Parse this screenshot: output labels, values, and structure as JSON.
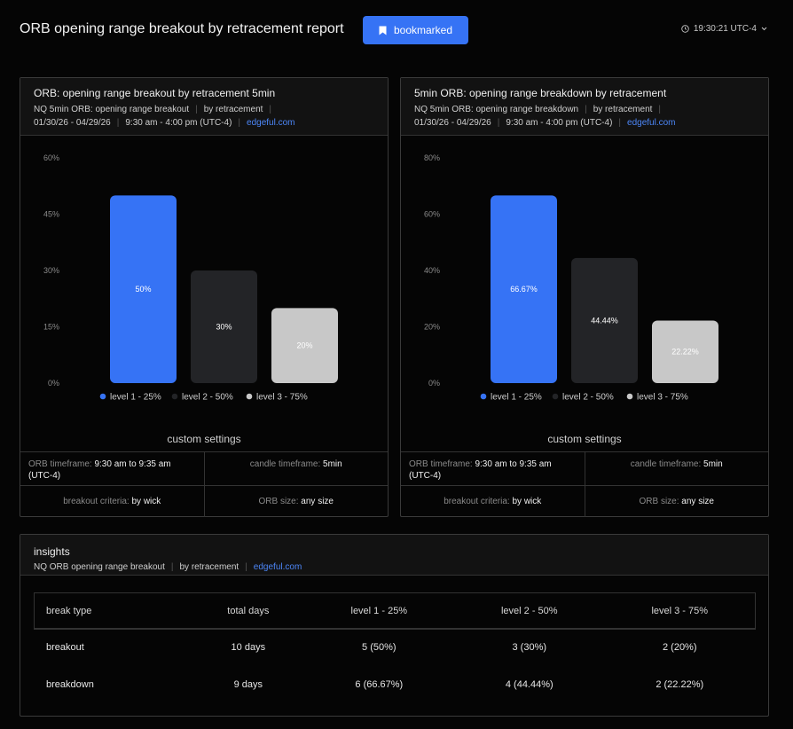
{
  "header": {
    "title": "ORB opening range breakout by retracement report",
    "bookmark_label": "bookmarked",
    "time_label": "19:30:21 UTC-4"
  },
  "panels": [
    {
      "title": "ORB: opening range breakout by retracement 5min",
      "subtitle_a": "NQ 5min ORB: opening range breakout",
      "subtitle_b": "by retracement",
      "date_range": "01/30/26 - 04/29/26",
      "time_range": "9:30 am - 4:00 pm (UTC-4)",
      "link": "edgeful.com",
      "custom_settings_title": "custom settings",
      "settings": {
        "orb_timeframe_label": "ORB timeframe:",
        "orb_timeframe_value": "9:30 am to 9:35 am (UTC-4)",
        "candle_timeframe_label": "candle timeframe:",
        "candle_timeframe_value": "5min",
        "criteria_label": "breakout criteria:",
        "criteria_value": "by wick",
        "orb_size_label": "ORB size:",
        "orb_size_value": "any size"
      }
    },
    {
      "title": "5min ORB: opening range breakdown by retracement",
      "subtitle_a": "NQ 5min ORB: opening range breakdown",
      "subtitle_b": "by retracement",
      "date_range": "01/30/26 - 04/29/26",
      "time_range": "9:30 am - 4:00 pm (UTC-4)",
      "link": "edgeful.com",
      "custom_settings_title": "custom settings",
      "settings": {
        "orb_timeframe_label": "ORB timeframe:",
        "orb_timeframe_value": "9:30 am to 9:35 am (UTC-4)",
        "candle_timeframe_label": "candle timeframe:",
        "candle_timeframe_value": "5min",
        "criteria_label": "breakout criteria:",
        "criteria_value": "by wick",
        "orb_size_label": "ORB size:",
        "orb_size_value": "any size"
      }
    }
  ],
  "chart_data": [
    {
      "type": "bar",
      "categories": [
        "level 1 - 25%",
        "level 2 - 50%",
        "level 3 - 75%"
      ],
      "values": [
        50,
        30,
        20
      ],
      "data_labels": [
        "50%",
        "30%",
        "20%"
      ],
      "ylim": [
        0,
        60
      ],
      "yticks": [
        "0%",
        "15%",
        "30%",
        "45%",
        "60%"
      ],
      "colors": [
        "#3673f5",
        "#232427",
        "#c8c8c8"
      ],
      "label_colors": [
        "#ffffff",
        "#ffffff",
        "#ffffff"
      ],
      "legend_position": "bottom",
      "grid": false
    },
    {
      "type": "bar",
      "categories": [
        "level 1 - 25%",
        "level 2 - 50%",
        "level 3 - 75%"
      ],
      "values": [
        66.67,
        44.44,
        22.22
      ],
      "data_labels": [
        "66.67%",
        "44.44%",
        "22.22%"
      ],
      "ylim": [
        0,
        80
      ],
      "yticks": [
        "0%",
        "20%",
        "40%",
        "60%",
        "80%"
      ],
      "colors": [
        "#3673f5",
        "#232427",
        "#c8c8c8"
      ],
      "label_colors": [
        "#ffffff",
        "#ffffff",
        "#ffffff"
      ],
      "legend_position": "bottom",
      "grid": false
    }
  ],
  "insights": {
    "title": "insights",
    "subtitle_a": "NQ ORB opening range breakout",
    "subtitle_b": "by retracement",
    "link": "edgeful.com",
    "columns": [
      "break type",
      "total days",
      "level 1 - 25%",
      "level 2 - 50%",
      "level 3 - 75%"
    ],
    "rows": [
      [
        "breakout",
        "10 days",
        "5 (50%)",
        "3 (30%)",
        "2 (20%)"
      ],
      [
        "breakdown",
        "9 days",
        "6 (66.67%)",
        "4 (44.44%)",
        "2 (22.22%)"
      ]
    ]
  }
}
